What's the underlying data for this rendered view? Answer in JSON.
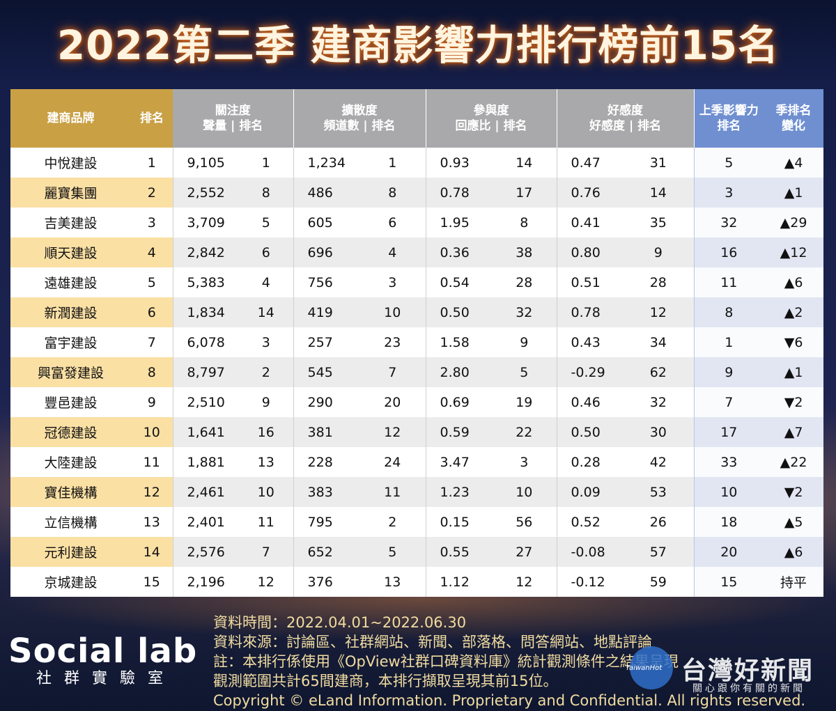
{
  "title": "2022第二季 建商影響力排行榜前15名",
  "header": {
    "brand": "建商品牌",
    "rank": "排名",
    "attention_l1": "關注度",
    "attention_l2": "聲量 | 排名",
    "spread_l1": "擴散度",
    "spread_l2": "頻道數 | 排名",
    "engage_l1": "參與度",
    "engage_l2": "回應比 | 排名",
    "favor_l1": "好感度",
    "favor_l2": "好感度 | 排名",
    "prev_l1": "上季影響力",
    "prev_l2": "排名",
    "change_l1": "季排名",
    "change_l2": "變化"
  },
  "rows": [
    {
      "brand": "中悅建設",
      "rank": "1",
      "volume": "9,105",
      "volume_rank": "1",
      "channels": "1,234",
      "channels_rank": "1",
      "response": "0.93",
      "response_rank": "14",
      "favor": "0.47",
      "favor_rank": "31",
      "prev_rank": "5",
      "change": "▲4",
      "dir": "up"
    },
    {
      "brand": "麗寶集團",
      "rank": "2",
      "volume": "2,552",
      "volume_rank": "8",
      "channels": "486",
      "channels_rank": "8",
      "response": "0.78",
      "response_rank": "17",
      "favor": "0.76",
      "favor_rank": "14",
      "prev_rank": "3",
      "change": "▲1",
      "dir": "up"
    },
    {
      "brand": "吉美建設",
      "rank": "3",
      "volume": "3,709",
      "volume_rank": "5",
      "channels": "605",
      "channels_rank": "6",
      "response": "1.95",
      "response_rank": "8",
      "favor": "0.41",
      "favor_rank": "35",
      "prev_rank": "32",
      "change": "▲29",
      "dir": "up"
    },
    {
      "brand": "順天建設",
      "rank": "4",
      "volume": "2,842",
      "volume_rank": "6",
      "channels": "696",
      "channels_rank": "4",
      "response": "0.36",
      "response_rank": "38",
      "favor": "0.80",
      "favor_rank": "9",
      "prev_rank": "16",
      "change": "▲12",
      "dir": "up"
    },
    {
      "brand": "遠雄建設",
      "rank": "5",
      "volume": "5,383",
      "volume_rank": "4",
      "channels": "756",
      "channels_rank": "3",
      "response": "0.54",
      "response_rank": "28",
      "favor": "0.51",
      "favor_rank": "28",
      "prev_rank": "11",
      "change": "▲6",
      "dir": "up"
    },
    {
      "brand": "新潤建設",
      "rank": "6",
      "volume": "1,834",
      "volume_rank": "14",
      "channels": "419",
      "channels_rank": "10",
      "response": "0.50",
      "response_rank": "32",
      "favor": "0.78",
      "favor_rank": "12",
      "prev_rank": "8",
      "change": "▲2",
      "dir": "up"
    },
    {
      "brand": "富宇建設",
      "rank": "7",
      "volume": "6,078",
      "volume_rank": "3",
      "channels": "257",
      "channels_rank": "23",
      "response": "1.58",
      "response_rank": "9",
      "favor": "0.43",
      "favor_rank": "34",
      "prev_rank": "1",
      "change": "▼6",
      "dir": "down"
    },
    {
      "brand": "興富發建設",
      "rank": "8",
      "volume": "8,797",
      "volume_rank": "2",
      "channels": "545",
      "channels_rank": "7",
      "response": "2.80",
      "response_rank": "5",
      "favor": "-0.29",
      "favor_rank": "62",
      "prev_rank": "9",
      "change": "▲1",
      "dir": "up"
    },
    {
      "brand": "豐邑建設",
      "rank": "9",
      "volume": "2,510",
      "volume_rank": "9",
      "channels": "290",
      "channels_rank": "20",
      "response": "0.69",
      "response_rank": "19",
      "favor": "0.46",
      "favor_rank": "32",
      "prev_rank": "7",
      "change": "▼2",
      "dir": "down"
    },
    {
      "brand": "冠德建設",
      "rank": "10",
      "volume": "1,641",
      "volume_rank": "16",
      "channels": "381",
      "channels_rank": "12",
      "response": "0.59",
      "response_rank": "22",
      "favor": "0.50",
      "favor_rank": "30",
      "prev_rank": "17",
      "change": "▲7",
      "dir": "up"
    },
    {
      "brand": "大陸建設",
      "rank": "11",
      "volume": "1,881",
      "volume_rank": "13",
      "channels": "228",
      "channels_rank": "24",
      "response": "3.47",
      "response_rank": "3",
      "favor": "0.28",
      "favor_rank": "42",
      "prev_rank": "33",
      "change": "▲22",
      "dir": "up"
    },
    {
      "brand": "寶佳機構",
      "rank": "12",
      "volume": "2,461",
      "volume_rank": "10",
      "channels": "383",
      "channels_rank": "11",
      "response": "1.23",
      "response_rank": "10",
      "favor": "0.09",
      "favor_rank": "53",
      "prev_rank": "10",
      "change": "▼2",
      "dir": "down"
    },
    {
      "brand": "立信機構",
      "rank": "13",
      "volume": "2,401",
      "volume_rank": "11",
      "channels": "795",
      "channels_rank": "2",
      "response": "0.15",
      "response_rank": "56",
      "favor": "0.52",
      "favor_rank": "26",
      "prev_rank": "18",
      "change": "▲5",
      "dir": "up"
    },
    {
      "brand": "元利建設",
      "rank": "14",
      "volume": "2,576",
      "volume_rank": "7",
      "channels": "652",
      "channels_rank": "5",
      "response": "0.55",
      "response_rank": "27",
      "favor": "-0.08",
      "favor_rank": "57",
      "prev_rank": "20",
      "change": "▲6",
      "dir": "up"
    },
    {
      "brand": "京城建設",
      "rank": "15",
      "volume": "2,196",
      "volume_rank": "12",
      "channels": "376",
      "channels_rank": "13",
      "response": "1.12",
      "response_rank": "12",
      "favor": "-0.12",
      "favor_rank": "59",
      "prev_rank": "15",
      "change": "持平",
      "dir": "flat"
    }
  ],
  "colors": {
    "up": "#e0191f",
    "down": "#129a3a",
    "header_gold": "#c9a044",
    "header_gray": "#a9a9ab",
    "header_blue": "#6f8fd1"
  },
  "logo": {
    "main": "Social lab",
    "sub": "社群實驗室",
    "icon": "flask-icon"
  },
  "notes": [
    "資料時間：2022.04.01~2022.06.30",
    "資料來源：討論區、社群網站、新聞、部落格、問答網站、地點評論",
    "註：本排行係使用《OpView社群口碑資料庫》統計觀測條件之結果呈現",
    "觀測範圍共計65間建商，本排行擷取呈現其前15位。",
    "Copyright © eLand Information. Proprietary and Confidential. All rights reserved."
  ],
  "watermark": {
    "small": "TaiwanHot",
    "big": "台灣好新聞",
    "tag": "關心跟你有關的新聞"
  }
}
